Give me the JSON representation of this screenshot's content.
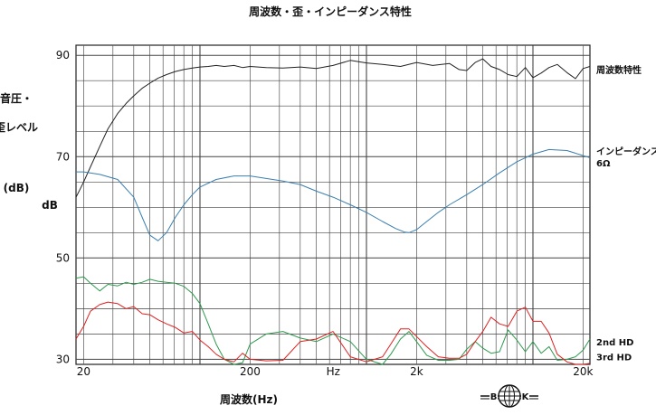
{
  "chart_data": {
    "type": "line",
    "title": "周波数・歪・インピーダンス特性",
    "xlabel": "周波数(Hz)",
    "x_scale": "log",
    "xlim": [
      18,
      22000
    ],
    "ylim": [
      29,
      92
    ],
    "ylabel_lines": [
      "音圧・",
      "歪レベル",
      "(dB)"
    ],
    "ylabel_unit": "dB",
    "y_ticks": [
      {
        "value": 90,
        "label": "90"
      },
      {
        "value": 70,
        "label": "70"
      },
      {
        "value": 50,
        "label": "50"
      },
      {
        "value": 30,
        "label": "30"
      }
    ],
    "x_ticks": [
      {
        "value": 20,
        "label": "20"
      },
      {
        "value": 200,
        "label": "200"
      },
      {
        "value": 2000,
        "label": "2k"
      },
      {
        "value": 20000,
        "label": "20k"
      }
    ],
    "x_unit_label": {
      "value": 632,
      "label": "Hz"
    },
    "grid": true,
    "series": [
      {
        "name": "周波数特性",
        "color": "#222222",
        "x": [
          18,
          19,
          20,
          22,
          25,
          28,
          32,
          36,
          40,
          45,
          50,
          56,
          63,
          71,
          80,
          90,
          100,
          112,
          125,
          140,
          160,
          180,
          200,
          250,
          315,
          400,
          500,
          630,
          800,
          1000,
          1250,
          1600,
          2000,
          2500,
          3150,
          3600,
          4000,
          4500,
          5000,
          5600,
          6300,
          7100,
          8000,
          9000,
          10000,
          11200,
          12500,
          14000,
          16000,
          18000,
          20000,
          22000
        ],
        "values": [
          62,
          63.5,
          65,
          68,
          72,
          75.5,
          78.5,
          80.5,
          82,
          83.5,
          84.5,
          85.5,
          86.2,
          86.8,
          87.2,
          87.5,
          87.7,
          87.8,
          88,
          87.8,
          88,
          87.6,
          87.8,
          87.6,
          87.5,
          87.7,
          87.4,
          88,
          89,
          88.5,
          88.2,
          87.8,
          88.6,
          88,
          88.4,
          87.2,
          87,
          88.6,
          89.3,
          87.8,
          87.2,
          86.2,
          85.8,
          87.6,
          85.6,
          86.5,
          87.6,
          88.2,
          86.6,
          85.4,
          87.4,
          87.8
        ]
      },
      {
        "name": "インピーダンス",
        "sublabel": "6Ω",
        "color": "#3a7fb0",
        "x": [
          18,
          20,
          25,
          32,
          40,
          45,
          50,
          56,
          63,
          71,
          80,
          90,
          100,
          125,
          160,
          200,
          250,
          315,
          400,
          500,
          630,
          800,
          1000,
          1250,
          1500,
          1700,
          1800,
          2000,
          2300,
          2700,
          3150,
          4000,
          5000,
          6300,
          8000,
          10000,
          12500,
          16000,
          20000,
          22000
        ],
        "values": [
          67,
          67,
          66.5,
          65.5,
          62,
          58,
          54.5,
          53.4,
          55,
          58,
          60.5,
          62.5,
          64,
          65.5,
          66.2,
          66.2,
          65.7,
          65.2,
          64.5,
          63.2,
          62,
          60.5,
          59,
          57.2,
          55.8,
          55.1,
          55,
          55.6,
          57.2,
          59,
          60.5,
          62.5,
          64.5,
          66.8,
          69,
          70.5,
          71.4,
          71.2,
          70.2,
          69.8
        ]
      },
      {
        "name": "2nd HD",
        "color": "#2e9a4e",
        "x": [
          18,
          20,
          22,
          25,
          28,
          32,
          36,
          40,
          45,
          50,
          56,
          63,
          71,
          80,
          90,
          100,
          112,
          125,
          140,
          160,
          180,
          200,
          250,
          315,
          400,
          500,
          630,
          800,
          1000,
          1250,
          1400,
          1600,
          1800,
          2000,
          2300,
          2700,
          3150,
          3600,
          4000,
          4500,
          5000,
          5600,
          6300,
          7100,
          8000,
          9000,
          10000,
          11200,
          12500,
          14000,
          16000,
          18000,
          20000,
          22000
        ],
        "values": [
          46,
          46.3,
          45,
          43.5,
          44.8,
          44.5,
          45.2,
          44.8,
          45.2,
          45.8,
          45.4,
          45.2,
          45,
          44.4,
          43,
          41,
          37,
          33,
          30,
          29,
          29.3,
          33,
          35,
          35.5,
          34.2,
          33.5,
          35,
          33.5,
          30,
          29,
          31,
          34,
          35.5,
          33.5,
          30.8,
          29.8,
          29.8,
          30,
          32,
          33.5,
          32.2,
          31.2,
          31.5,
          35.8,
          33.8,
          31.5,
          33.5,
          31.2,
          32.5,
          29.8,
          30,
          30.5,
          31.8,
          34
        ]
      },
      {
        "name": "3rd HD",
        "color": "#e02020",
        "x": [
          18,
          20,
          22,
          25,
          28,
          32,
          36,
          40,
          45,
          50,
          56,
          63,
          71,
          80,
          90,
          100,
          112,
          125,
          140,
          160,
          180,
          200,
          250,
          315,
          400,
          500,
          630,
          800,
          1000,
          1250,
          1400,
          1600,
          1800,
          2000,
          2300,
          2700,
          3150,
          3600,
          4000,
          4500,
          5000,
          5600,
          6300,
          7100,
          8000,
          9000,
          10000,
          11200,
          12500,
          14000,
          16000,
          18000,
          20000,
          22000
        ],
        "values": [
          34,
          36.5,
          39.5,
          40.8,
          41.3,
          41,
          40,
          40.4,
          39,
          38.8,
          37.8,
          37,
          36.3,
          35.2,
          35.5,
          33.8,
          32.5,
          31,
          30,
          29.5,
          31.2,
          30,
          29.7,
          29.8,
          33.5,
          34,
          35.5,
          30.5,
          29.5,
          30.5,
          33,
          36,
          36,
          34.5,
          32.5,
          30.5,
          30.2,
          30.2,
          31,
          33.5,
          35.5,
          38.3,
          37,
          36.5,
          39.5,
          40.3,
          37.5,
          37.5,
          35.2,
          31,
          29.5,
          29,
          29,
          29.2
        ]
      }
    ],
    "logo_text": "B K"
  }
}
